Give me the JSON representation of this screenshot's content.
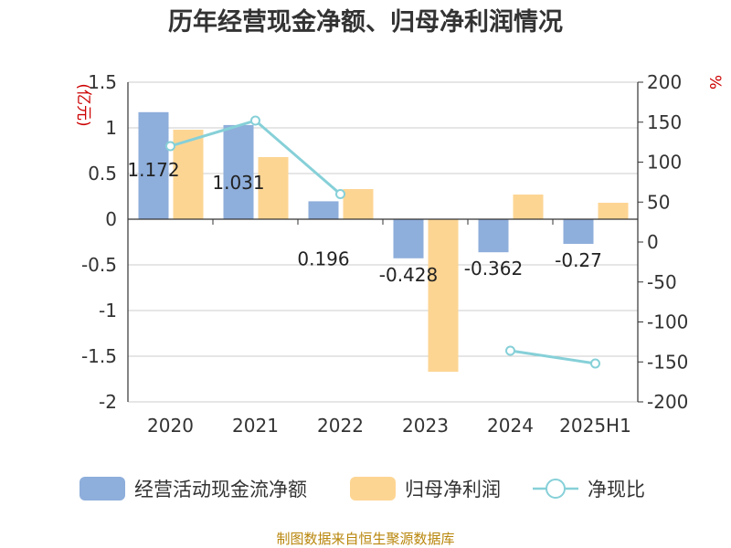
{
  "chart_data": {
    "type": "bar",
    "title": "历年经营现金净额、归母净利润情况",
    "categories": [
      "2020",
      "2021",
      "2022",
      "2023",
      "2024",
      "2025H1"
    ],
    "left_unit": "(亿元)",
    "right_unit": "%",
    "ylim_left": [
      -2,
      1.5
    ],
    "yticks_left": [
      "1.5",
      "1",
      "0.5",
      "0",
      "-0.5",
      "-1",
      "-1.5",
      "-2"
    ],
    "ylim_right": [
      -200,
      200
    ],
    "yticks_right": [
      "200",
      "150",
      "100",
      "50",
      "0",
      "-50",
      "-100",
      "-150",
      "-200"
    ],
    "series": [
      {
        "name": "经营活动现金流净额",
        "kind": "bar",
        "axis": "left",
        "color": "#8eaedb",
        "values": [
          1.172,
          1.031,
          0.196,
          -0.428,
          -0.362,
          -0.27
        ],
        "labels": [
          "1.172",
          "1.031",
          "0.196",
          "-0.428",
          "-0.362",
          "-0.27"
        ]
      },
      {
        "name": "归母净利润",
        "kind": "bar",
        "axis": "left",
        "color": "#fdd593",
        "values": [
          0.98,
          0.68,
          0.33,
          -1.67,
          0.27,
          0.18
        ]
      },
      {
        "name": "净现比",
        "kind": "line",
        "axis": "right",
        "color": "#86d0d8",
        "values": [
          120,
          152,
          60,
          null,
          -136,
          -152
        ]
      }
    ],
    "grid": true,
    "legend_position": "bottom"
  },
  "source": "制图数据来自恒生聚源数据库"
}
